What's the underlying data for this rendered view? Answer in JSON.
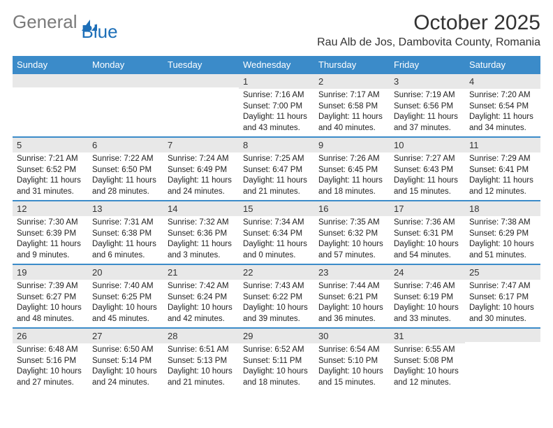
{
  "brand": {
    "part1": "General",
    "part2": "Blue"
  },
  "title": "October 2025",
  "location": "Rau Alb de Jos, Dambovita County, Romania",
  "colors": {
    "header_bg": "#3b8bc9",
    "header_text": "#ffffff",
    "daynum_bg": "#e8e8e8",
    "row_border": "#3b8bc9",
    "logo_gray": "#7a7a7a",
    "logo_blue": "#1d6fb8",
    "text": "#333333"
  },
  "weekdays": [
    "Sunday",
    "Monday",
    "Tuesday",
    "Wednesday",
    "Thursday",
    "Friday",
    "Saturday"
  ],
  "weeks": [
    [
      {
        "n": "",
        "sunrise": "",
        "sunset": "",
        "daylight1": "",
        "daylight2": ""
      },
      {
        "n": "",
        "sunrise": "",
        "sunset": "",
        "daylight1": "",
        "daylight2": ""
      },
      {
        "n": "",
        "sunrise": "",
        "sunset": "",
        "daylight1": "",
        "daylight2": ""
      },
      {
        "n": "1",
        "sunrise": "Sunrise: 7:16 AM",
        "sunset": "Sunset: 7:00 PM",
        "daylight1": "Daylight: 11 hours",
        "daylight2": "and 43 minutes."
      },
      {
        "n": "2",
        "sunrise": "Sunrise: 7:17 AM",
        "sunset": "Sunset: 6:58 PM",
        "daylight1": "Daylight: 11 hours",
        "daylight2": "and 40 minutes."
      },
      {
        "n": "3",
        "sunrise": "Sunrise: 7:19 AM",
        "sunset": "Sunset: 6:56 PM",
        "daylight1": "Daylight: 11 hours",
        "daylight2": "and 37 minutes."
      },
      {
        "n": "4",
        "sunrise": "Sunrise: 7:20 AM",
        "sunset": "Sunset: 6:54 PM",
        "daylight1": "Daylight: 11 hours",
        "daylight2": "and 34 minutes."
      }
    ],
    [
      {
        "n": "5",
        "sunrise": "Sunrise: 7:21 AM",
        "sunset": "Sunset: 6:52 PM",
        "daylight1": "Daylight: 11 hours",
        "daylight2": "and 31 minutes."
      },
      {
        "n": "6",
        "sunrise": "Sunrise: 7:22 AM",
        "sunset": "Sunset: 6:50 PM",
        "daylight1": "Daylight: 11 hours",
        "daylight2": "and 28 minutes."
      },
      {
        "n": "7",
        "sunrise": "Sunrise: 7:24 AM",
        "sunset": "Sunset: 6:49 PM",
        "daylight1": "Daylight: 11 hours",
        "daylight2": "and 24 minutes."
      },
      {
        "n": "8",
        "sunrise": "Sunrise: 7:25 AM",
        "sunset": "Sunset: 6:47 PM",
        "daylight1": "Daylight: 11 hours",
        "daylight2": "and 21 minutes."
      },
      {
        "n": "9",
        "sunrise": "Sunrise: 7:26 AM",
        "sunset": "Sunset: 6:45 PM",
        "daylight1": "Daylight: 11 hours",
        "daylight2": "and 18 minutes."
      },
      {
        "n": "10",
        "sunrise": "Sunrise: 7:27 AM",
        "sunset": "Sunset: 6:43 PM",
        "daylight1": "Daylight: 11 hours",
        "daylight2": "and 15 minutes."
      },
      {
        "n": "11",
        "sunrise": "Sunrise: 7:29 AM",
        "sunset": "Sunset: 6:41 PM",
        "daylight1": "Daylight: 11 hours",
        "daylight2": "and 12 minutes."
      }
    ],
    [
      {
        "n": "12",
        "sunrise": "Sunrise: 7:30 AM",
        "sunset": "Sunset: 6:39 PM",
        "daylight1": "Daylight: 11 hours",
        "daylight2": "and 9 minutes."
      },
      {
        "n": "13",
        "sunrise": "Sunrise: 7:31 AM",
        "sunset": "Sunset: 6:38 PM",
        "daylight1": "Daylight: 11 hours",
        "daylight2": "and 6 minutes."
      },
      {
        "n": "14",
        "sunrise": "Sunrise: 7:32 AM",
        "sunset": "Sunset: 6:36 PM",
        "daylight1": "Daylight: 11 hours",
        "daylight2": "and 3 minutes."
      },
      {
        "n": "15",
        "sunrise": "Sunrise: 7:34 AM",
        "sunset": "Sunset: 6:34 PM",
        "daylight1": "Daylight: 11 hours",
        "daylight2": "and 0 minutes."
      },
      {
        "n": "16",
        "sunrise": "Sunrise: 7:35 AM",
        "sunset": "Sunset: 6:32 PM",
        "daylight1": "Daylight: 10 hours",
        "daylight2": "and 57 minutes."
      },
      {
        "n": "17",
        "sunrise": "Sunrise: 7:36 AM",
        "sunset": "Sunset: 6:31 PM",
        "daylight1": "Daylight: 10 hours",
        "daylight2": "and 54 minutes."
      },
      {
        "n": "18",
        "sunrise": "Sunrise: 7:38 AM",
        "sunset": "Sunset: 6:29 PM",
        "daylight1": "Daylight: 10 hours",
        "daylight2": "and 51 minutes."
      }
    ],
    [
      {
        "n": "19",
        "sunrise": "Sunrise: 7:39 AM",
        "sunset": "Sunset: 6:27 PM",
        "daylight1": "Daylight: 10 hours",
        "daylight2": "and 48 minutes."
      },
      {
        "n": "20",
        "sunrise": "Sunrise: 7:40 AM",
        "sunset": "Sunset: 6:25 PM",
        "daylight1": "Daylight: 10 hours",
        "daylight2": "and 45 minutes."
      },
      {
        "n": "21",
        "sunrise": "Sunrise: 7:42 AM",
        "sunset": "Sunset: 6:24 PM",
        "daylight1": "Daylight: 10 hours",
        "daylight2": "and 42 minutes."
      },
      {
        "n": "22",
        "sunrise": "Sunrise: 7:43 AM",
        "sunset": "Sunset: 6:22 PM",
        "daylight1": "Daylight: 10 hours",
        "daylight2": "and 39 minutes."
      },
      {
        "n": "23",
        "sunrise": "Sunrise: 7:44 AM",
        "sunset": "Sunset: 6:21 PM",
        "daylight1": "Daylight: 10 hours",
        "daylight2": "and 36 minutes."
      },
      {
        "n": "24",
        "sunrise": "Sunrise: 7:46 AM",
        "sunset": "Sunset: 6:19 PM",
        "daylight1": "Daylight: 10 hours",
        "daylight2": "and 33 minutes."
      },
      {
        "n": "25",
        "sunrise": "Sunrise: 7:47 AM",
        "sunset": "Sunset: 6:17 PM",
        "daylight1": "Daylight: 10 hours",
        "daylight2": "and 30 minutes."
      }
    ],
    [
      {
        "n": "26",
        "sunrise": "Sunrise: 6:48 AM",
        "sunset": "Sunset: 5:16 PM",
        "daylight1": "Daylight: 10 hours",
        "daylight2": "and 27 minutes."
      },
      {
        "n": "27",
        "sunrise": "Sunrise: 6:50 AM",
        "sunset": "Sunset: 5:14 PM",
        "daylight1": "Daylight: 10 hours",
        "daylight2": "and 24 minutes."
      },
      {
        "n": "28",
        "sunrise": "Sunrise: 6:51 AM",
        "sunset": "Sunset: 5:13 PM",
        "daylight1": "Daylight: 10 hours",
        "daylight2": "and 21 minutes."
      },
      {
        "n": "29",
        "sunrise": "Sunrise: 6:52 AM",
        "sunset": "Sunset: 5:11 PM",
        "daylight1": "Daylight: 10 hours",
        "daylight2": "and 18 minutes."
      },
      {
        "n": "30",
        "sunrise": "Sunrise: 6:54 AM",
        "sunset": "Sunset: 5:10 PM",
        "daylight1": "Daylight: 10 hours",
        "daylight2": "and 15 minutes."
      },
      {
        "n": "31",
        "sunrise": "Sunrise: 6:55 AM",
        "sunset": "Sunset: 5:08 PM",
        "daylight1": "Daylight: 10 hours",
        "daylight2": "and 12 minutes."
      },
      {
        "n": "",
        "sunrise": "",
        "sunset": "",
        "daylight1": "",
        "daylight2": ""
      }
    ]
  ]
}
